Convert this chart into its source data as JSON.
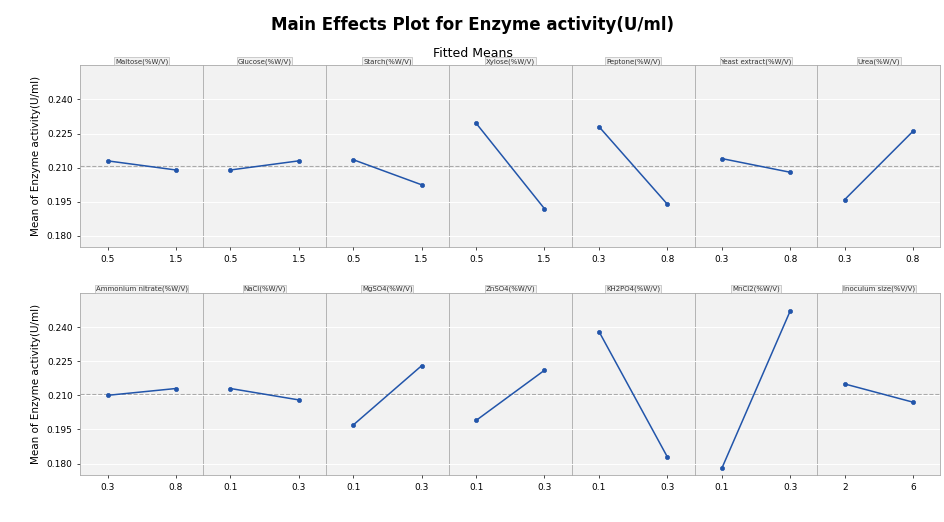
{
  "title": "Main Effects Plot for Enzyme activity(U/ml)",
  "subtitle": "Fitted Means",
  "ylabel": "Mean of Enzyme activity(U/ml)",
  "reference_line": 0.2107,
  "line_color": "#2255aa",
  "dashed_color": "#aaaaaa",
  "rows": [
    [
      {
        "label": "Maltose(%W/V)",
        "x": [
          0.5,
          1.5
        ],
        "y": [
          0.213,
          0.209
        ]
      },
      {
        "label": "Glucose(%W/V)",
        "x": [
          0.5,
          1.5
        ],
        "y": [
          0.209,
          0.213
        ]
      },
      {
        "label": "Starch(%W/V)",
        "x": [
          0.5,
          1.5
        ],
        "y": [
          0.2135,
          0.2025
        ]
      },
      {
        "label": "Xylose(%W/V)",
        "x": [
          0.5,
          1.5
        ],
        "y": [
          0.2295,
          0.192
        ]
      },
      {
        "label": "Peptone(%W/V)",
        "x": [
          0.3,
          0.8
        ],
        "y": [
          0.228,
          0.194
        ]
      },
      {
        "label": "Yeast extract(%W/V)",
        "x": [
          0.3,
          0.8
        ],
        "y": [
          0.214,
          0.208
        ]
      },
      {
        "label": "Urea(%W/V)",
        "x": [
          0.3,
          0.8
        ],
        "y": [
          0.196,
          0.226
        ]
      }
    ],
    [
      {
        "label": "Ammonium nitrate(%W/V)",
        "x": [
          0.3,
          0.8
        ],
        "y": [
          0.21,
          0.213
        ]
      },
      {
        "label": "NaCl(%W/V)",
        "x": [
          0.1,
          0.3
        ],
        "y": [
          0.213,
          0.208
        ]
      },
      {
        "label": "MgSO4(%W/V)",
        "x": [
          0.1,
          0.3
        ],
        "y": [
          0.197,
          0.223
        ]
      },
      {
        "label": "ZnSO4(%W/V)",
        "x": [
          0.1,
          0.3
        ],
        "y": [
          0.199,
          0.221
        ]
      },
      {
        "label": "KH2PO4(%W/V)",
        "x": [
          0.1,
          0.3
        ],
        "y": [
          0.238,
          0.183
        ]
      },
      {
        "label": "MnCl2(%W/V)",
        "x": [
          0.1,
          0.3
        ],
        "y": [
          0.178,
          0.247
        ]
      },
      {
        "label": "Inoculum size(%V/V)",
        "x": [
          2,
          6
        ],
        "y": [
          0.215,
          0.207
        ]
      }
    ]
  ],
  "ylim": [
    0.175,
    0.255
  ],
  "yticks": [
    0.18,
    0.195,
    0.21,
    0.225,
    0.24
  ],
  "ytick_labels": [
    "0.180",
    "0.195",
    "0.210",
    "0.225",
    "0.240"
  ]
}
